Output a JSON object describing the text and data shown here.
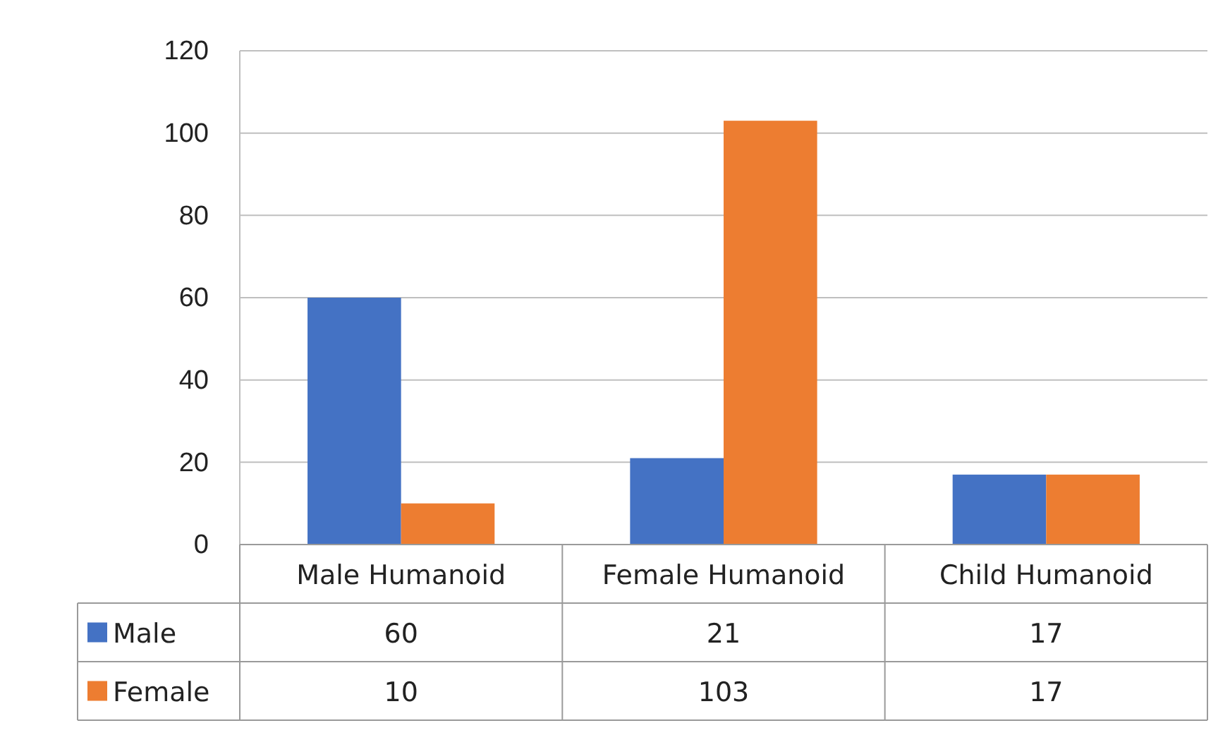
{
  "chart_data": {
    "type": "bar",
    "categories": [
      "Male Humanoid",
      "Female Humanoid",
      "Child Humanoid"
    ],
    "series": [
      {
        "name": "Male",
        "color": "#4472c4",
        "values": [
          60,
          21,
          17
        ]
      },
      {
        "name": "Female",
        "color": "#ed7d31",
        "values": [
          10,
          103,
          17
        ]
      }
    ],
    "ylim": [
      0,
      120
    ],
    "yticks": [
      0,
      20,
      40,
      60,
      80,
      100,
      120
    ],
    "grid": "y",
    "data_labels": true,
    "legend": "bottom left"
  }
}
